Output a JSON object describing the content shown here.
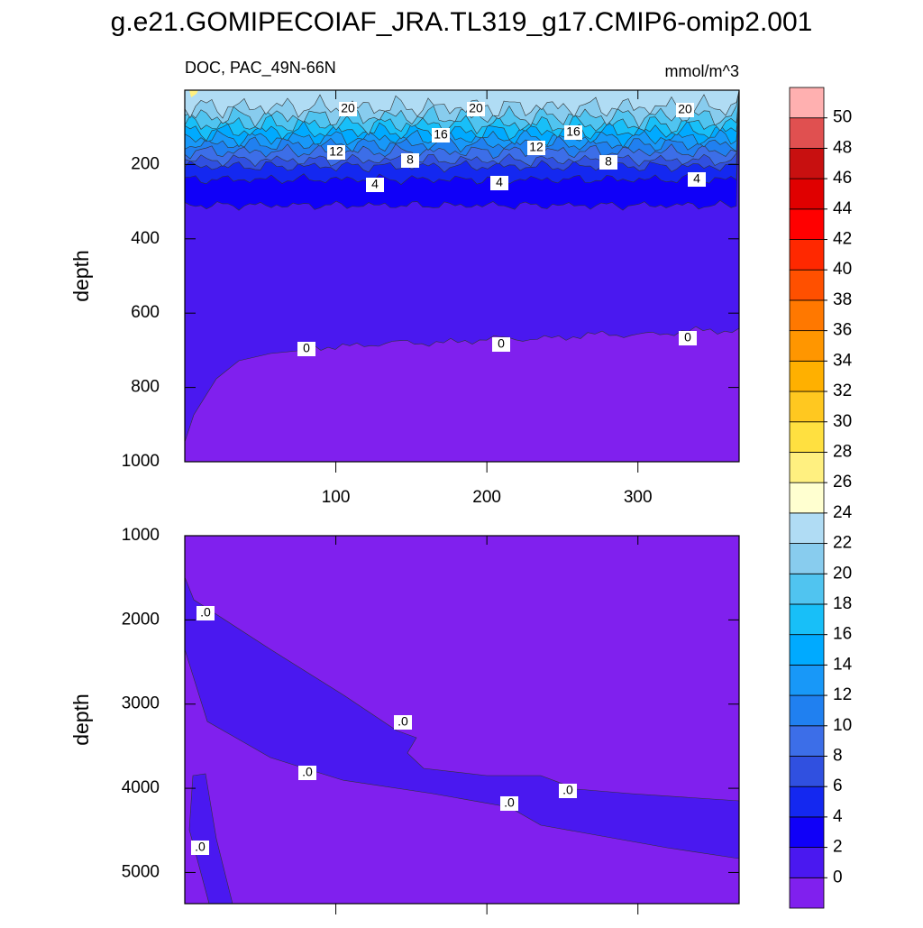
{
  "chart_data": {
    "type": "contour",
    "title": "g.e21.GOMIPECOIAF_JRA.TL319_g17.CMIP6-omip2.001",
    "subtitle_left": "DOC, PAC_49N-66N",
    "subtitle_right": "mmol/m^3",
    "levels": [
      0,
      2,
      4,
      6,
      8,
      10,
      12,
      14,
      16,
      18,
      20,
      22,
      24,
      26,
      28,
      30,
      32,
      34,
      36,
      38,
      40,
      42,
      44,
      46,
      48,
      50
    ],
    "colors": [
      "#8020ee",
      "#4a18f0",
      "#1000f8",
      "#1428f0",
      "#3050e0",
      "#3c6ee8",
      "#2080f0",
      "#1898f8",
      "#00aaff",
      "#18bff8",
      "#50c4f0",
      "#88ccee",
      "#b0dcf4",
      "#ffffd0",
      "#fff080",
      "#ffe040",
      "#ffc820",
      "#ffb000",
      "#ff9600",
      "#ff7800",
      "#ff5000",
      "#ff2800",
      "#ff0000",
      "#e00000",
      "#c81010",
      "#e05050",
      "#ffb0b0"
    ],
    "panels": [
      {
        "ylabel": "depth",
        "ylim": [
          0,
          1000
        ],
        "yticks": [
          200,
          400,
          600,
          800,
          1000
        ],
        "xlim": [
          0,
          367
        ],
        "xticks": [
          100,
          200,
          300
        ],
        "show_xtick_labels": true,
        "contour_labels": [
          "20",
          "20",
          "20",
          "16",
          "16",
          "12",
          "12",
          "8",
          "8",
          "4",
          "4",
          "4",
          "0",
          "0",
          "0"
        ]
      },
      {
        "ylabel": "depth",
        "ylim": [
          1000,
          5370
        ],
        "yticks": [
          1000,
          2000,
          3000,
          4000,
          5000
        ],
        "xlim": [
          0,
          367
        ],
        "xticks": [
          100,
          200,
          300
        ],
        "show_xtick_labels": false,
        "contour_labels": [
          ".0",
          ".0",
          ".0",
          ".0",
          ".0",
          ".0"
        ]
      }
    ]
  }
}
